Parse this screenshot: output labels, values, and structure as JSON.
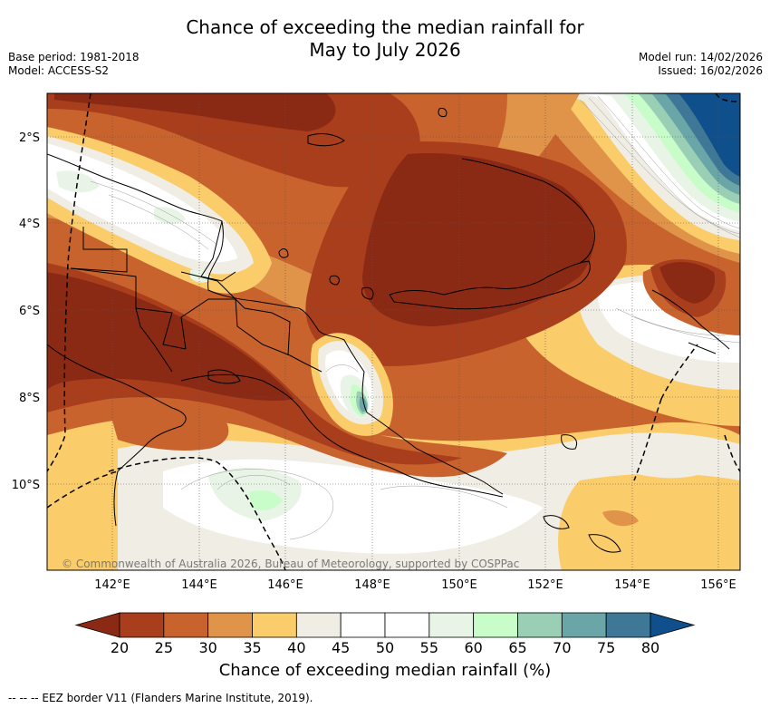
{
  "header": {
    "title_line1": "Chance of exceeding the median rainfall for",
    "title_line2": "May to July 2026",
    "base_period": "Base period: 1981-2018",
    "model": "Model: ACCESS-S2",
    "model_run": "Model run: 14/02/2026",
    "issued": "Issued: 16/02/2026"
  },
  "map": {
    "lon_ticks": [
      "142°E",
      "144°E",
      "146°E",
      "148°E",
      "150°E",
      "152°E",
      "154°E",
      "156°E"
    ],
    "lat_ticks": [
      "2°S",
      "4°S",
      "6°S",
      "8°S",
      "10°S"
    ],
    "copyright": "© Commonwealth of Australia 2026, Bureau of Meteorology, supported by COSPPac"
  },
  "colorbar": {
    "labels": [
      "20",
      "25",
      "30",
      "35",
      "40",
      "45",
      "50",
      "55",
      "60",
      "65",
      "70",
      "75",
      "80"
    ],
    "colors": [
      "#8b2a14",
      "#a93e1c",
      "#c8632e",
      "#e0944a",
      "#fbcc6a",
      "#f0ede5",
      "#ffffff",
      "#ffffff",
      "#e8f5e6",
      "#c8fcc8",
      "#9acfb6",
      "#6aa5a8",
      "#3f7896",
      "#0e4f8c"
    ],
    "title": "Chance of exceeding median rainfall (%)"
  },
  "footnote": "--  --  -- EEZ border V11 (Flanders Marine Institute, 2019).",
  "colors": {
    "deep_dry": "#8b2a14",
    "dry": "#a93e1c",
    "wet": "#0e4f8c"
  }
}
